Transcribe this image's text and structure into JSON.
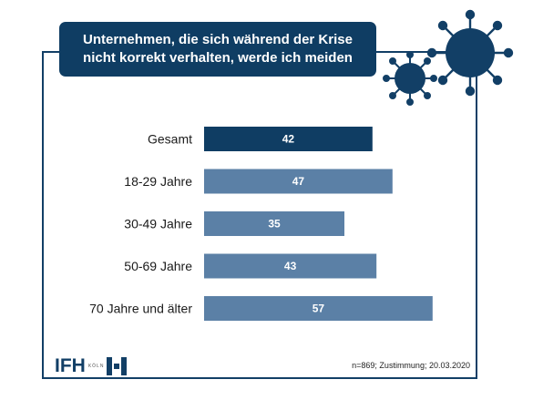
{
  "title": "Unternehmen, die sich während der Krise nicht korrekt verhalten, werde ich meiden",
  "footnote": "n=869; Zustimmung; 20.03.2020",
  "logo": {
    "brand": "IFH",
    "city": "KÖLN"
  },
  "colors": {
    "primary": "#0f3d63",
    "secondary": "#5b80a6",
    "label": "#1a1a1a"
  },
  "chart_data": {
    "type": "bar",
    "orientation": "horizontal",
    "categories": [
      "Gesamt",
      "18-29 Jahre",
      "30-49 Jahre",
      "50-69 Jahre",
      "70 Jahre und älter"
    ],
    "values": [
      42,
      47,
      35,
      43,
      57
    ],
    "highlight_index": 0,
    "xlim": [
      0,
      100
    ],
    "grid": false
  }
}
